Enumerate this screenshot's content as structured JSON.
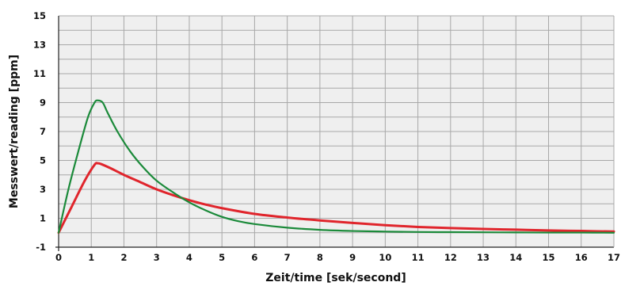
{
  "chart_data": {
    "type": "line",
    "title": "",
    "xlabel": "Zeit/time [sek/second]",
    "ylabel": "Messwert/reading [ppm]",
    "xlim": [
      0,
      17
    ],
    "ylim": [
      -1,
      15
    ],
    "x_ticks": [
      "0",
      "1",
      "2",
      "3",
      "4",
      "5",
      "6",
      "7",
      "8",
      "9",
      "10",
      "11",
      "12",
      "13",
      "14",
      "15",
      "16",
      "17"
    ],
    "y_ticks": [
      "15",
      "13",
      "11",
      "9",
      "7",
      "5",
      "3",
      "1",
      "-1"
    ],
    "grid": true,
    "legend": "none",
    "series": [
      {
        "color": "#1b8a3a",
        "x": [
          0,
          0.3,
          0.6,
          0.9,
          1.1,
          1.2,
          1.35,
          1.5,
          1.8,
          2.2,
          2.6,
          3.0,
          3.5,
          4.0,
          4.5,
          5.0,
          5.5,
          6.0,
          7.0,
          8.0,
          9.0,
          10.0,
          11.0,
          12.0,
          13.0,
          14.0,
          15.0,
          16.0,
          17.0
        ],
        "y": [
          0,
          3.0,
          5.6,
          8.0,
          9.0,
          9.15,
          9.0,
          8.3,
          7.0,
          5.6,
          4.5,
          3.6,
          2.8,
          2.1,
          1.55,
          1.1,
          0.8,
          0.6,
          0.35,
          0.2,
          0.12,
          0.08,
          0.05,
          0.04,
          0.03,
          0.02,
          0.01,
          0.01,
          0.0
        ]
      },
      {
        "color": "#e0252c",
        "x": [
          0,
          0.4,
          0.8,
          1.1,
          1.2,
          1.3,
          1.6,
          2.0,
          2.5,
          3.0,
          3.5,
          4.0,
          4.5,
          5.0,
          6.0,
          7.0,
          8.0,
          9.0,
          10.0,
          11.0,
          12.0,
          13.0,
          14.0,
          15.0,
          16.0,
          17.0
        ],
        "y": [
          0,
          1.8,
          3.6,
          4.7,
          4.8,
          4.75,
          4.45,
          4.0,
          3.5,
          3.0,
          2.6,
          2.25,
          1.95,
          1.7,
          1.3,
          1.05,
          0.85,
          0.68,
          0.52,
          0.4,
          0.32,
          0.26,
          0.21,
          0.16,
          0.12,
          0.08
        ]
      }
    ]
  }
}
